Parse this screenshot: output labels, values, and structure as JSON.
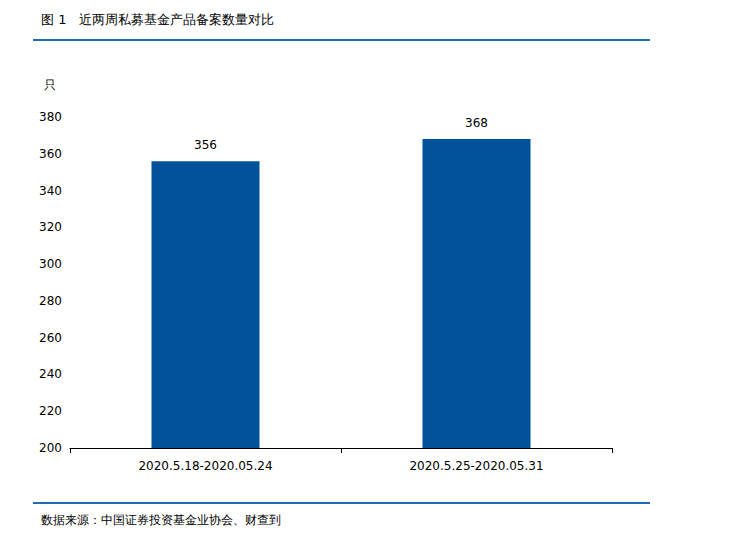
{
  "chart_data": {
    "type": "bar",
    "title": "图 1　近两周私募基金产品备案数量对比",
    "ylabel": "只",
    "note": "数据来源：中国证券投资基金业协会、财查到",
    "categories": [
      "2020.5.18-2020.05.24",
      "2020.5.25-2020.05.31"
    ],
    "values": [
      356,
      368
    ],
    "color": "#00539b",
    "ylim": [
      200,
      380
    ],
    "yticks": [
      200,
      220,
      240,
      260,
      280,
      300,
      320,
      340,
      360,
      380
    ],
    "grid": false,
    "data_labels": true
  }
}
